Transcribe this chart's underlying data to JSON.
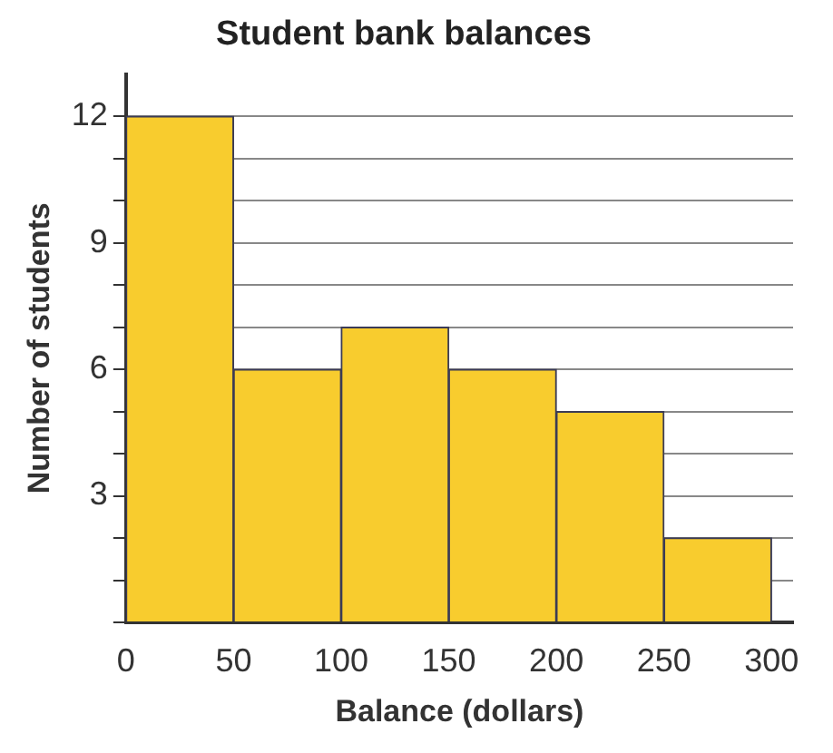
{
  "chart_data": {
    "type": "histogram",
    "title": "Student bank balances",
    "xlabel": "Balance (dollars)",
    "ylabel": "Number of students",
    "bins": [
      0,
      50,
      100,
      150,
      200,
      250,
      300
    ],
    "values": [
      12,
      6,
      7,
      6,
      5,
      2
    ],
    "color": "#f8cc2e",
    "xlim": [
      0,
      310
    ],
    "xticks": [
      0,
      50,
      100,
      150,
      200,
      250,
      300
    ],
    "ylim": [
      0,
      13
    ],
    "yticks": [
      {
        "value": 0,
        "label": null
      },
      {
        "value": 1,
        "label": null
      },
      {
        "value": 2,
        "label": null
      },
      3,
      {
        "value": 4,
        "label": null
      },
      {
        "value": 5,
        "label": null
      },
      6,
      {
        "value": 7,
        "label": null
      },
      {
        "value": 8,
        "label": null
      },
      9,
      {
        "value": 10,
        "label": null
      },
      {
        "value": 11,
        "label": null
      },
      12
    ],
    "grid": "y",
    "legend": false
  }
}
